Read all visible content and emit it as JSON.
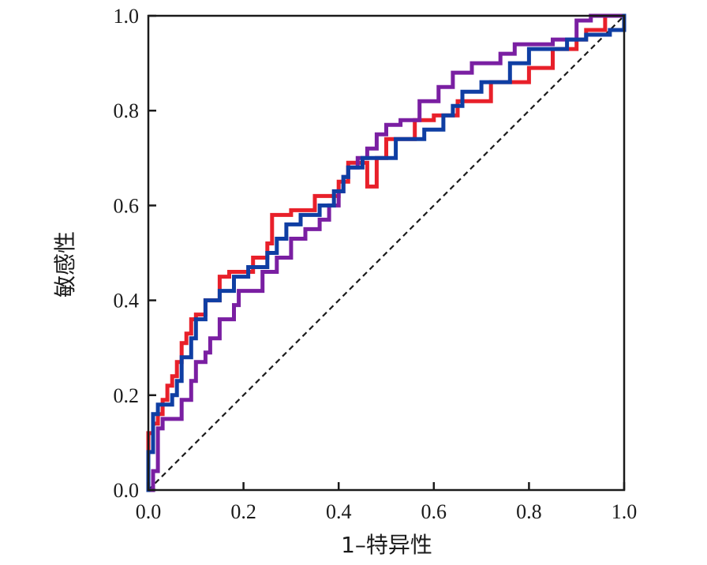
{
  "chart_data": {
    "type": "line",
    "xlabel": "1–特异性",
    "ylabel": "敏感性",
    "xlim": [
      0,
      1
    ],
    "ylim": [
      0,
      1
    ],
    "x_ticks": [
      "0.0",
      "0.2",
      "0.4",
      "0.6",
      "0.8",
      "1.0"
    ],
    "y_ticks": [
      "0.0",
      "0.2",
      "0.4",
      "0.6",
      "0.8",
      "1.0"
    ],
    "grid": false,
    "legend": "none",
    "reference_line": {
      "points": [
        [
          0,
          0
        ],
        [
          1,
          1
        ]
      ],
      "style": "dashed",
      "color": "#1a1a1a"
    },
    "series": [
      {
        "color": "#e8202a",
        "points": [
          [
            0,
            0
          ],
          [
            0,
            0.12
          ],
          [
            0.01,
            0.12
          ],
          [
            0.01,
            0.14
          ],
          [
            0.02,
            0.14
          ],
          [
            0.02,
            0.16
          ],
          [
            0.03,
            0.16
          ],
          [
            0.03,
            0.19
          ],
          [
            0.04,
            0.19
          ],
          [
            0.04,
            0.22
          ],
          [
            0.05,
            0.22
          ],
          [
            0.05,
            0.24
          ],
          [
            0.06,
            0.24
          ],
          [
            0.06,
            0.27
          ],
          [
            0.07,
            0.27
          ],
          [
            0.07,
            0.31
          ],
          [
            0.08,
            0.31
          ],
          [
            0.08,
            0.33
          ],
          [
            0.09,
            0.33
          ],
          [
            0.09,
            0.36
          ],
          [
            0.1,
            0.36
          ],
          [
            0.1,
            0.37
          ],
          [
            0.12,
            0.37
          ],
          [
            0.12,
            0.4
          ],
          [
            0.15,
            0.4
          ],
          [
            0.15,
            0.45
          ],
          [
            0.17,
            0.45
          ],
          [
            0.17,
            0.46
          ],
          [
            0.22,
            0.46
          ],
          [
            0.22,
            0.49
          ],
          [
            0.25,
            0.49
          ],
          [
            0.25,
            0.52
          ],
          [
            0.26,
            0.52
          ],
          [
            0.26,
            0.58
          ],
          [
            0.3,
            0.58
          ],
          [
            0.3,
            0.59
          ],
          [
            0.35,
            0.59
          ],
          [
            0.35,
            0.62
          ],
          [
            0.4,
            0.62
          ],
          [
            0.4,
            0.65
          ],
          [
            0.42,
            0.65
          ],
          [
            0.42,
            0.69
          ],
          [
            0.46,
            0.69
          ],
          [
            0.46,
            0.64
          ],
          [
            0.48,
            0.64
          ],
          [
            0.48,
            0.7
          ],
          [
            0.5,
            0.7
          ],
          [
            0.5,
            0.74
          ],
          [
            0.56,
            0.74
          ],
          [
            0.56,
            0.78
          ],
          [
            0.6,
            0.78
          ],
          [
            0.6,
            0.79
          ],
          [
            0.65,
            0.79
          ],
          [
            0.65,
            0.82
          ],
          [
            0.72,
            0.82
          ],
          [
            0.72,
            0.86
          ],
          [
            0.8,
            0.86
          ],
          [
            0.8,
            0.89
          ],
          [
            0.85,
            0.89
          ],
          [
            0.85,
            0.93
          ],
          [
            0.9,
            0.93
          ],
          [
            0.9,
            0.95
          ],
          [
            0.92,
            0.95
          ],
          [
            0.92,
            0.97
          ],
          [
            0.96,
            0.97
          ],
          [
            0.96,
            1.0
          ],
          [
            1.0,
            1.0
          ]
        ]
      },
      {
        "color": "#7a1fa2",
        "points": [
          [
            0,
            0
          ],
          [
            0.01,
            0
          ],
          [
            0.01,
            0.04
          ],
          [
            0.02,
            0.04
          ],
          [
            0.02,
            0.13
          ],
          [
            0.03,
            0.13
          ],
          [
            0.03,
            0.15
          ],
          [
            0.07,
            0.15
          ],
          [
            0.07,
            0.19
          ],
          [
            0.09,
            0.19
          ],
          [
            0.09,
            0.23
          ],
          [
            0.1,
            0.23
          ],
          [
            0.1,
            0.27
          ],
          [
            0.12,
            0.27
          ],
          [
            0.12,
            0.29
          ],
          [
            0.13,
            0.29
          ],
          [
            0.13,
            0.32
          ],
          [
            0.15,
            0.32
          ],
          [
            0.15,
            0.36
          ],
          [
            0.18,
            0.36
          ],
          [
            0.18,
            0.39
          ],
          [
            0.19,
            0.39
          ],
          [
            0.19,
            0.42
          ],
          [
            0.24,
            0.42
          ],
          [
            0.24,
            0.46
          ],
          [
            0.27,
            0.46
          ],
          [
            0.27,
            0.49
          ],
          [
            0.3,
            0.49
          ],
          [
            0.3,
            0.53
          ],
          [
            0.33,
            0.53
          ],
          [
            0.33,
            0.55
          ],
          [
            0.36,
            0.55
          ],
          [
            0.36,
            0.57
          ],
          [
            0.38,
            0.57
          ],
          [
            0.38,
            0.6
          ],
          [
            0.4,
            0.6
          ],
          [
            0.4,
            0.63
          ],
          [
            0.41,
            0.63
          ],
          [
            0.41,
            0.66
          ],
          [
            0.42,
            0.66
          ],
          [
            0.42,
            0.68
          ],
          [
            0.44,
            0.68
          ],
          [
            0.44,
            0.7
          ],
          [
            0.46,
            0.7
          ],
          [
            0.46,
            0.72
          ],
          [
            0.48,
            0.72
          ],
          [
            0.48,
            0.75
          ],
          [
            0.5,
            0.75
          ],
          [
            0.5,
            0.77
          ],
          [
            0.53,
            0.77
          ],
          [
            0.53,
            0.78
          ],
          [
            0.57,
            0.78
          ],
          [
            0.57,
            0.82
          ],
          [
            0.61,
            0.82
          ],
          [
            0.61,
            0.85
          ],
          [
            0.64,
            0.85
          ],
          [
            0.64,
            0.88
          ],
          [
            0.68,
            0.88
          ],
          [
            0.68,
            0.9
          ],
          [
            0.74,
            0.9
          ],
          [
            0.74,
            0.92
          ],
          [
            0.77,
            0.92
          ],
          [
            0.77,
            0.94
          ],
          [
            0.85,
            0.94
          ],
          [
            0.85,
            0.95
          ],
          [
            0.9,
            0.95
          ],
          [
            0.9,
            0.99
          ],
          [
            0.93,
            0.99
          ],
          [
            0.93,
            1.0
          ],
          [
            1.0,
            1.0
          ]
        ]
      },
      {
        "color": "#0f3ea3",
        "points": [
          [
            0,
            0
          ],
          [
            0,
            0.08
          ],
          [
            0.01,
            0.08
          ],
          [
            0.01,
            0.16
          ],
          [
            0.02,
            0.16
          ],
          [
            0.02,
            0.18
          ],
          [
            0.05,
            0.18
          ],
          [
            0.05,
            0.2
          ],
          [
            0.06,
            0.2
          ],
          [
            0.06,
            0.23
          ],
          [
            0.07,
            0.23
          ],
          [
            0.07,
            0.28
          ],
          [
            0.09,
            0.28
          ],
          [
            0.09,
            0.32
          ],
          [
            0.1,
            0.32
          ],
          [
            0.1,
            0.36
          ],
          [
            0.12,
            0.36
          ],
          [
            0.12,
            0.4
          ],
          [
            0.15,
            0.4
          ],
          [
            0.15,
            0.42
          ],
          [
            0.18,
            0.42
          ],
          [
            0.18,
            0.45
          ],
          [
            0.21,
            0.45
          ],
          [
            0.21,
            0.47
          ],
          [
            0.25,
            0.47
          ],
          [
            0.25,
            0.5
          ],
          [
            0.27,
            0.5
          ],
          [
            0.27,
            0.53
          ],
          [
            0.29,
            0.53
          ],
          [
            0.29,
            0.56
          ],
          [
            0.32,
            0.56
          ],
          [
            0.32,
            0.58
          ],
          [
            0.36,
            0.58
          ],
          [
            0.36,
            0.6
          ],
          [
            0.39,
            0.6
          ],
          [
            0.39,
            0.63
          ],
          [
            0.41,
            0.63
          ],
          [
            0.41,
            0.66
          ],
          [
            0.42,
            0.66
          ],
          [
            0.42,
            0.68
          ],
          [
            0.45,
            0.68
          ],
          [
            0.45,
            0.7
          ],
          [
            0.52,
            0.7
          ],
          [
            0.52,
            0.74
          ],
          [
            0.58,
            0.74
          ],
          [
            0.58,
            0.76
          ],
          [
            0.62,
            0.76
          ],
          [
            0.62,
            0.79
          ],
          [
            0.64,
            0.79
          ],
          [
            0.64,
            0.81
          ],
          [
            0.66,
            0.81
          ],
          [
            0.66,
            0.84
          ],
          [
            0.7,
            0.84
          ],
          [
            0.7,
            0.86
          ],
          [
            0.76,
            0.86
          ],
          [
            0.76,
            0.9
          ],
          [
            0.8,
            0.9
          ],
          [
            0.8,
            0.93
          ],
          [
            0.88,
            0.93
          ],
          [
            0.88,
            0.95
          ],
          [
            0.92,
            0.95
          ],
          [
            0.92,
            0.96
          ],
          [
            0.97,
            0.96
          ],
          [
            0.97,
            0.97
          ],
          [
            1.0,
            0.97
          ],
          [
            1.0,
            1.0
          ]
        ]
      }
    ]
  }
}
